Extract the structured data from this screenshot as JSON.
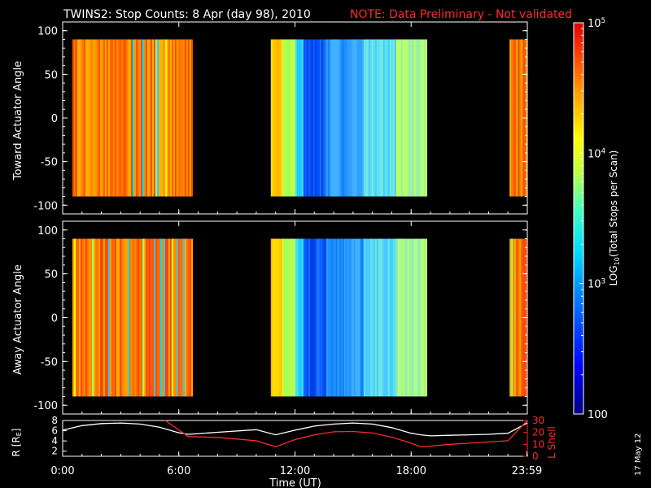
{
  "title": {
    "main": "TWINS2: Stop Counts:  8 Apr (day  98), 2010",
    "note": "NOTE: Data Preliminary - Not validated",
    "note_color": "#ff2020"
  },
  "stamp": "17 May 12",
  "colorbar": {
    "label": "LOG10(Total Stops per Scan)",
    "ticks": [
      "10^5",
      "10^4",
      "10^3",
      "100"
    ],
    "tick_values": [
      100000,
      10000,
      1000,
      100
    ]
  },
  "chart_data": [
    {
      "type": "heatmap",
      "ylabel": "Toward Actuator Angle",
      "ylim": [
        -110,
        110
      ],
      "y_ticks": [
        -100,
        -50,
        0,
        50,
        100
      ],
      "x_range_hours": [
        0,
        24
      ],
      "data_angle_range": [
        -90,
        90
      ],
      "segments": [
        {
          "start": "0:30",
          "end": "6:40",
          "level": "high (~5e4, orange/red)"
        },
        {
          "start": "10:45",
          "end": "18:45",
          "level": "medium-low (~2e3 to 1e4, blue/cyan/yellow)"
        },
        {
          "start": "23:05",
          "end": "23:59",
          "level": "high (~5e4, orange/red)"
        }
      ]
    },
    {
      "type": "heatmap",
      "ylabel": "Away Actuator Angle",
      "ylim": [
        -110,
        110
      ],
      "y_ticks": [
        -100,
        -50,
        0,
        50,
        100
      ],
      "x_range_hours": [
        0,
        24
      ],
      "data_angle_range": [
        -90,
        90
      ],
      "segments": [
        {
          "start": "0:30",
          "end": "6:40",
          "level": "high (~5e4, orange/red)"
        },
        {
          "start": "10:45",
          "end": "18:45",
          "level": "medium-low (~2e3 to 1e4, blue/cyan/yellow)"
        },
        {
          "start": "23:05",
          "end": "23:59",
          "level": "high (~5e4, orange/red)"
        }
      ]
    },
    {
      "type": "line",
      "ylabel_left": "R [RE]",
      "ylabel_right": "L Shell",
      "xlabel": "Time (UT)",
      "x_ticks": [
        "0:00",
        "6:00",
        "12:00",
        "18:00",
        "23:59"
      ],
      "ylim_left": [
        1,
        8
      ],
      "y_ticks_left": [
        2,
        4,
        6,
        8
      ],
      "ylim_right": [
        0,
        30
      ],
      "y_ticks_right": [
        0,
        10,
        20,
        30
      ],
      "series": [
        {
          "color": "#ffffff",
          "axis": "left",
          "x": [
            0,
            1,
            2,
            3,
            4,
            5,
            6,
            6.5,
            8,
            10,
            11,
            12,
            13,
            14,
            15,
            16,
            17,
            18,
            18.5,
            19,
            20,
            21,
            22,
            23,
            24
          ],
          "y": [
            6.1,
            7.0,
            7.4,
            7.5,
            7.3,
            6.7,
            5.6,
            5.3,
            5.7,
            6.2,
            5.2,
            6.1,
            6.9,
            7.3,
            7.5,
            7.3,
            6.6,
            5.5,
            5.2,
            5.0,
            5.1,
            5.2,
            5.3,
            5.5,
            7.5
          ]
        },
        {
          "color": "#ff2a2a",
          "axis": "right",
          "x": [
            5.3,
            6.5,
            8,
            10,
            11,
            12,
            13,
            14,
            15,
            16,
            17,
            18,
            18.5,
            19,
            20,
            21,
            22,
            23,
            24
          ],
          "y": [
            30,
            16.5,
            15.8,
            13,
            8,
            14,
            18,
            20.5,
            20.8,
            19.5,
            16,
            11,
            8,
            8.5,
            10,
            11,
            12,
            13,
            30
          ]
        }
      ]
    }
  ],
  "axis_labels": {
    "time": "Time (UT)",
    "r_label": "R [R",
    "r_sub": "E",
    "lshell": "L Shell"
  }
}
